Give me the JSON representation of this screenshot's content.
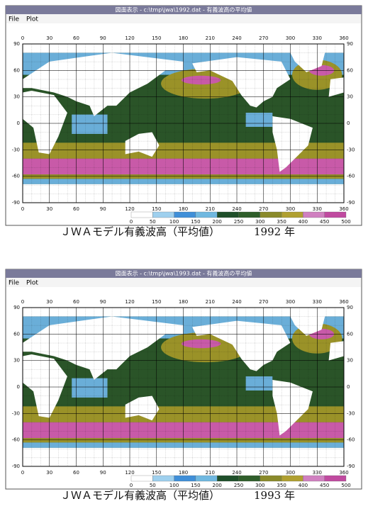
{
  "panels": [
    {
      "window_title": "図面表示 - c:\\tmp\\jwa\\1992.dat - 有義波高の平均値",
      "menu": [
        "File",
        "Plot"
      ],
      "x_ticks": [
        0,
        30,
        60,
        90,
        120,
        150,
        180,
        210,
        240,
        270,
        300,
        330,
        360
      ],
      "y_ticks": [
        90,
        60,
        30,
        0,
        -30,
        -60,
        -90
      ],
      "colorbar_labels": [
        0,
        50,
        100,
        150,
        200,
        250,
        300,
        350,
        400,
        450,
        500
      ],
      "colorbar_colors": [
        "#ffffff",
        "#9fd0ee",
        "#3f8fd8",
        "#70b8e0",
        "#1f4f2a",
        "#2f5e2a",
        "#8a8a2a",
        "#b0a030",
        "#d080c0",
        "#c04aa0"
      ],
      "caption": "ＪＷＡモデル有義波高（平均値）",
      "year": "1992 年"
    },
    {
      "window_title": "図面表示 - c:\\tmp\\jwa\\1993.dat - 有義波高の平均値",
      "menu": [
        "File",
        "Plot"
      ],
      "x_ticks": [
        0,
        30,
        60,
        90,
        120,
        150,
        180,
        210,
        240,
        270,
        300,
        330,
        360
      ],
      "y_ticks": [
        90,
        60,
        30,
        0,
        -30,
        -60,
        -90
      ],
      "colorbar_labels": [
        0,
        50,
        100,
        150,
        200,
        250,
        300,
        350,
        400,
        450,
        500
      ],
      "colorbar_colors": [
        "#ffffff",
        "#9fd0ee",
        "#3f8fd8",
        "#70b8e0",
        "#1f4f2a",
        "#2f5e2a",
        "#8a8a2a",
        "#b0a030",
        "#d080c0",
        "#c04aa0"
      ],
      "caption": "ＪＷＡモデル有義波高（平均値）",
      "year": "1993 年"
    }
  ]
}
